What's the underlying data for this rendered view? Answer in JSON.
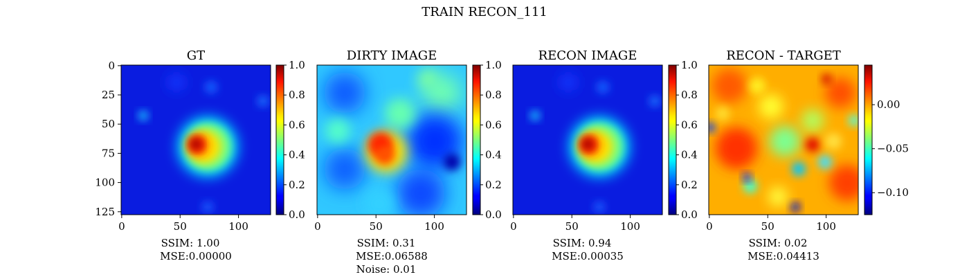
{
  "figure": {
    "title": "TRAIN RECON_111"
  },
  "chart_data": [
    {
      "type": "heatmap",
      "title": "GT",
      "colormap": "jet",
      "image_size": [
        128,
        128
      ],
      "xticks": [
        "0",
        "50",
        "100"
      ],
      "yticks": [
        "0",
        "25",
        "50",
        "75",
        "100",
        "125"
      ],
      "colorbar": {
        "range": [
          0.0,
          1.0
        ],
        "ticks": [
          "0.0",
          "0.2",
          "0.4",
          "0.6",
          "0.8",
          "1.0"
        ]
      },
      "metrics": [
        "SSIM: 1.00",
        "MSE:0.00000"
      ]
    },
    {
      "type": "heatmap",
      "title": "DIRTY IMAGE",
      "colormap": "jet",
      "image_size": [
        128,
        128
      ],
      "xticks": [
        "0",
        "50",
        "100"
      ],
      "colorbar": {
        "range": [
          0.0,
          1.0
        ],
        "ticks": [
          "0.0",
          "0.2",
          "0.4",
          "0.6",
          "0.8",
          "1.0"
        ]
      },
      "metrics": [
        "SSIM: 0.31",
        "MSE:0.06588",
        "Noise: 0.01"
      ]
    },
    {
      "type": "heatmap",
      "title": "RECON IMAGE",
      "colormap": "jet",
      "image_size": [
        128,
        128
      ],
      "xticks": [
        "0",
        "50",
        "100"
      ],
      "colorbar": {
        "range": [
          0.0,
          1.0
        ],
        "ticks": [
          "0.0",
          "0.2",
          "0.4",
          "0.6",
          "0.8",
          "1.0"
        ]
      },
      "metrics": [
        "SSIM: 0.94",
        "MSE:0.00035"
      ]
    },
    {
      "type": "heatmap",
      "title": "RECON - TARGET",
      "colormap": "jet",
      "image_size": [
        128,
        128
      ],
      "xticks": [
        "0",
        "50",
        "100"
      ],
      "colorbar": {
        "range": [
          -0.125,
          0.045
        ],
        "ticks": [
          "0.00",
          "−0.05",
          "−0.10"
        ]
      },
      "metrics": [
        "SSIM: 0.02",
        "MSE:0.04413"
      ]
    }
  ]
}
